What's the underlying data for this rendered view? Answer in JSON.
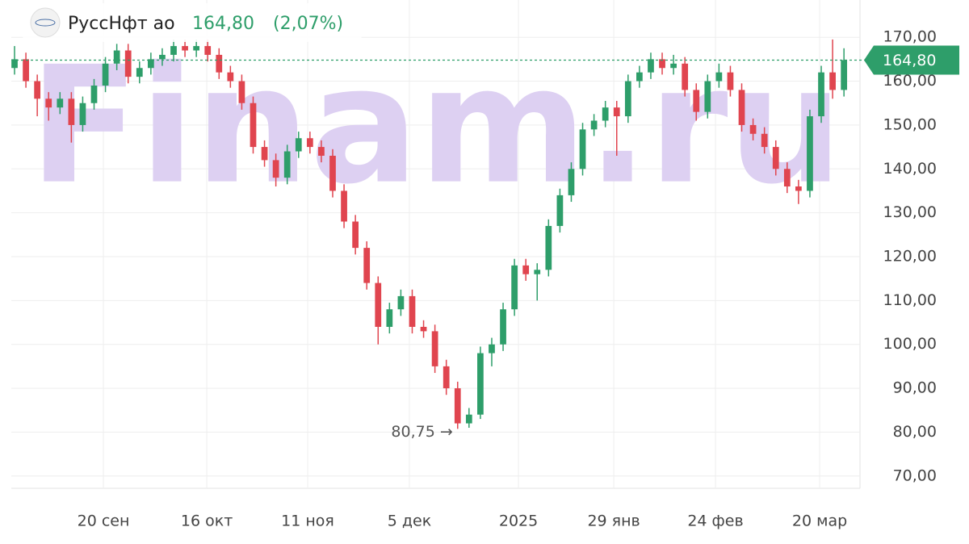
{
  "chart_data": {
    "type": "candlestick",
    "title": "РуссНфт ао",
    "price_label": {
      "value": 164.8,
      "label": "164,80"
    },
    "change_label": "(2,07%)",
    "watermark": "Finam.ru",
    "up_color": "#2e9e6a",
    "down_color": "#e0454f",
    "open": [
      163,
      165,
      160,
      156,
      154,
      156,
      150,
      155,
      159,
      164,
      167,
      161,
      163,
      165,
      166,
      168,
      167,
      168,
      166,
      162,
      160,
      155,
      145,
      142,
      138,
      144,
      147,
      145,
      143,
      135,
      128,
      122,
      114,
      104,
      108,
      111,
      104,
      103,
      95,
      90,
      82,
      84,
      98,
      100,
      108,
      118,
      116,
      117,
      127,
      134,
      140,
      149,
      151,
      154,
      152,
      160,
      162,
      165,
      163,
      164,
      158,
      153,
      160,
      162,
      158,
      150,
      148,
      145,
      140,
      136,
      135,
      152,
      162,
      158
    ],
    "high": [
      168,
      166.5,
      161.5,
      157.5,
      157.5,
      157.5,
      156.5,
      160.5,
      165.5,
      168.5,
      168.5,
      164.5,
      166.5,
      167.5,
      169.5,
      169.5,
      169.5,
      169.5,
      167.5,
      163.5,
      161.5,
      156.5,
      146.5,
      143.5,
      145.5,
      148.5,
      148.5,
      146.5,
      144.5,
      136.5,
      129.5,
      123.5,
      115.5,
      109.5,
      112.5,
      112.5,
      105.5,
      104.5,
      96.5,
      91.5,
      85.5,
      99.5,
      101.5,
      109.5,
      119.5,
      119.5,
      118.5,
      128.5,
      135.5,
      141.5,
      150.5,
      152.5,
      155.5,
      155.5,
      161.5,
      163.5,
      166.5,
      166.5,
      166,
      165.5,
      159.5,
      161.5,
      164,
      163.5,
      159.5,
      151.5,
      149.5,
      146.5,
      141.5,
      137.5,
      153.5,
      163.5,
      169.5,
      167.5
    ],
    "low": [
      161.5,
      158.5,
      152,
      151,
      152.5,
      146,
      148.5,
      153.5,
      157.5,
      162.5,
      159.5,
      159.5,
      161.5,
      163.5,
      164.5,
      165.5,
      165.5,
      164.5,
      160.5,
      158.5,
      153.5,
      143.5,
      140.5,
      136,
      136.5,
      142.5,
      143.5,
      141.5,
      133.5,
      126.5,
      120.5,
      112.5,
      100,
      102.5,
      106.5,
      102.5,
      101.5,
      93.5,
      88.5,
      80.75,
      81,
      83,
      95,
      98.5,
      106.5,
      114.5,
      110,
      115.5,
      125.5,
      132.5,
      138.5,
      147.5,
      149.5,
      143,
      150.5,
      158.5,
      160.5,
      161.5,
      161.5,
      156.5,
      151,
      151.5,
      158.5,
      156.5,
      148.5,
      146.5,
      143.5,
      138.5,
      134.5,
      132,
      133.5,
      150.5,
      156,
      156.5
    ],
    "close": [
      165,
      160,
      156,
      154,
      156,
      150,
      155,
      159,
      164,
      167,
      161,
      163,
      165,
      166,
      168,
      167,
      168,
      166,
      162,
      160,
      155,
      145,
      142,
      138,
      144,
      147,
      145,
      143,
      135,
      128,
      122,
      114,
      104,
      108,
      111,
      104,
      103,
      95,
      90,
      82,
      84,
      98,
      100,
      108,
      118,
      116,
      117,
      127,
      134,
      140,
      149,
      151,
      154,
      152,
      160,
      162,
      165,
      163,
      164,
      158,
      153,
      160,
      162,
      158,
      150,
      148,
      145,
      140,
      136,
      135,
      152,
      162,
      158,
      164.8
    ],
    "min_label": {
      "value": 80.75,
      "label": "80,75 →"
    },
    "xlim": [
      -1.28,
      74.41
    ],
    "xticks": [
      {
        "value": 7.82,
        "label": "20 сен"
      },
      {
        "value": 16.92,
        "label": "16 окт"
      },
      {
        "value": 25.8,
        "label": "11 ноя"
      },
      {
        "value": 34.75,
        "label": "5 дек"
      },
      {
        "value": 44.35,
        "label": "2025"
      },
      {
        "value": 52.74,
        "label": "29 янв"
      },
      {
        "value": 61.69,
        "label": "24 фев"
      },
      {
        "value": 70.86,
        "label": "20 мар"
      }
    ],
    "ylim": [
      67.2,
      178.5
    ],
    "yticks": [
      {
        "value": 70,
        "label": "70,00"
      },
      {
        "value": 80,
        "label": "80,00"
      },
      {
        "value": 90,
        "label": "90,00"
      },
      {
        "value": 100,
        "label": "100,00"
      },
      {
        "value": 110,
        "label": "110,00"
      },
      {
        "value": 120,
        "label": "120,00"
      },
      {
        "value": 130,
        "label": "130,00"
      },
      {
        "value": 140,
        "label": "140,00"
      },
      {
        "value": 150,
        "label": "150,00"
      },
      {
        "value": 160,
        "label": "160,00"
      },
      {
        "value": 170,
        "label": "170,00"
      }
    ],
    "grid": true
  }
}
